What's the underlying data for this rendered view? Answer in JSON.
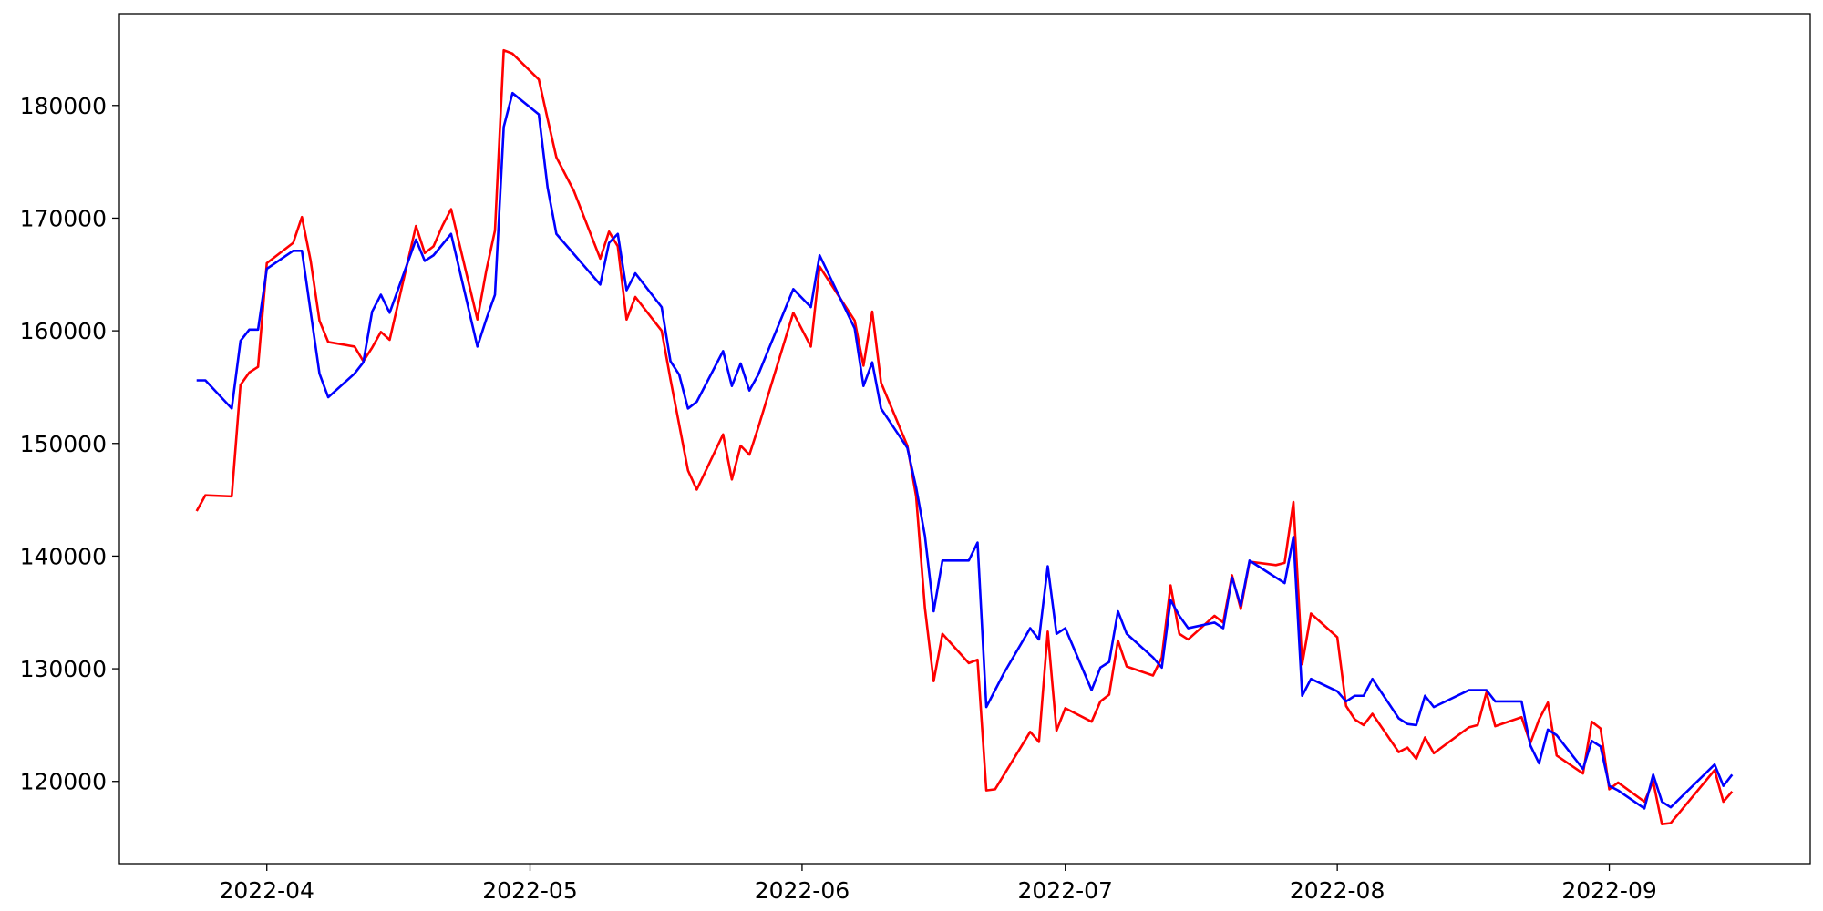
{
  "chart_data": {
    "type": "line",
    "xlim": [
      74.2,
      266.9
    ],
    "ylim": [
      112700,
      188150
    ],
    "xticks": [
      {
        "value": 91,
        "label": "2022-04"
      },
      {
        "value": 121,
        "label": "2022-05"
      },
      {
        "value": 152,
        "label": "2022-06"
      },
      {
        "value": 182,
        "label": "2022-07"
      },
      {
        "value": 213,
        "label": "2022-08"
      },
      {
        "value": 244,
        "label": "2022-09"
      }
    ],
    "yticks": [
      120000,
      130000,
      140000,
      150000,
      160000,
      170000,
      180000
    ],
    "series": [
      {
        "color": "#ff0000",
        "x": [
          83,
          84,
          87,
          88,
          89,
          90,
          91,
          94,
          95,
          96,
          97,
          98,
          101,
          102,
          103,
          104,
          105,
          108,
          109,
          110,
          111,
          112,
          115,
          116,
          117,
          118,
          119,
          122,
          123,
          124,
          126,
          129,
          130,
          131,
          132,
          133,
          136,
          137,
          139,
          140,
          143,
          144,
          145,
          146,
          147,
          151,
          153,
          154,
          158,
          159,
          160,
          161,
          164,
          165,
          166,
          167,
          168,
          171,
          172,
          173,
          174,
          178,
          179,
          180,
          181,
          182,
          185,
          186,
          187,
          188,
          189,
          192,
          193,
          194,
          195,
          196,
          199,
          200,
          201,
          202,
          203,
          206,
          207,
          208,
          209,
          210,
          213,
          214,
          215,
          216,
          217,
          220,
          221,
          222,
          223,
          224,
          228,
          229,
          230,
          231,
          234,
          235,
          236,
          237,
          238,
          241,
          242,
          243,
          244,
          245,
          248,
          249,
          250,
          251,
          256,
          257,
          258
        ],
        "values": [
          144000,
          145400,
          145300,
          155200,
          156300,
          156800,
          166000,
          167800,
          170100,
          166200,
          160900,
          159000,
          158600,
          157300,
          158500,
          159900,
          159200,
          169300,
          166900,
          167500,
          169300,
          170800,
          161000,
          165300,
          168900,
          184900,
          184600,
          182300,
          178800,
          175400,
          172400,
          166400,
          168800,
          167500,
          161000,
          163000,
          160000,
          155700,
          147600,
          145900,
          150800,
          146800,
          149800,
          149000,
          151400,
          161600,
          158600,
          165700,
          160900,
          156900,
          161700,
          155400,
          149800,
          145300,
          135400,
          128900,
          133100,
          130500,
          130800,
          119200,
          119300,
          124400,
          123500,
          133300,
          124500,
          126500,
          125300,
          127100,
          127700,
          132500,
          130200,
          129400,
          131000,
          137400,
          133100,
          132600,
          134700,
          134100,
          138300,
          135300,
          139500,
          139200,
          139400,
          144800,
          130400,
          134900,
          132800,
          126700,
          125500,
          125000,
          126000,
          122600,
          123000,
          122000,
          123900,
          122500,
          124800,
          125000,
          127900,
          124900,
          125700,
          123400,
          125500,
          127000,
          122300,
          120700,
          125300,
          124700,
          119300,
          119900,
          118200,
          120000,
          116200,
          116300,
          121000,
          118200,
          119100
        ]
      },
      {
        "color": "#0000ff",
        "x": [
          83,
          84,
          87,
          88,
          89,
          90,
          91,
          94,
          95,
          97,
          98,
          101,
          102,
          103,
          104,
          105,
          108,
          109,
          110,
          112,
          115,
          116,
          117,
          118,
          119,
          122,
          123,
          124,
          126,
          129,
          130,
          131,
          132,
          133,
          136,
          137,
          138,
          139,
          140,
          143,
          144,
          145,
          146,
          147,
          151,
          153,
          154,
          158,
          159,
          160,
          161,
          164,
          165,
          166,
          167,
          168,
          171,
          172,
          173,
          175,
          178,
          179,
          180,
          181,
          182,
          185,
          186,
          187,
          188,
          189,
          192,
          193,
          194,
          195,
          196,
          199,
          200,
          201,
          202,
          203,
          207,
          208,
          209,
          210,
          213,
          214,
          215,
          216,
          217,
          220,
          221,
          222,
          223,
          224,
          228,
          229,
          230,
          231,
          234,
          235,
          236,
          237,
          238,
          241,
          242,
          243,
          244,
          245,
          248,
          249,
          250,
          251,
          256,
          257,
          258
        ],
        "values": [
          155600,
          155600,
          153100,
          159100,
          160100,
          160100,
          165500,
          167100,
          167100,
          156200,
          154100,
          156200,
          157200,
          161700,
          163200,
          161600,
          168100,
          166200,
          166700,
          168600,
          158600,
          161000,
          163200,
          178100,
          181100,
          179200,
          172700,
          168600,
          166800,
          164100,
          167800,
          168600,
          163600,
          165100,
          162100,
          157300,
          156100,
          153100,
          153700,
          158200,
          155100,
          157100,
          154700,
          156100,
          163700,
          162100,
          166700,
          160200,
          155100,
          157200,
          153100,
          149600,
          146100,
          141800,
          135100,
          139600,
          139600,
          141200,
          126600,
          129600,
          133600,
          132600,
          139100,
          133100,
          133600,
          128100,
          130100,
          130600,
          135100,
          133100,
          131000,
          130100,
          136100,
          134700,
          133600,
          134100,
          133600,
          138100,
          135600,
          139600,
          137600,
          141700,
          127600,
          129100,
          128000,
          127100,
          127600,
          127600,
          129100,
          125600,
          125100,
          125000,
          127600,
          126600,
          128100,
          128100,
          128100,
          127100,
          127100,
          123200,
          121600,
          124600,
          124100,
          121100,
          123600,
          123100,
          119600,
          119200,
          117600,
          120600,
          118200,
          117700,
          121500,
          119600,
          120600
        ]
      }
    ]
  }
}
